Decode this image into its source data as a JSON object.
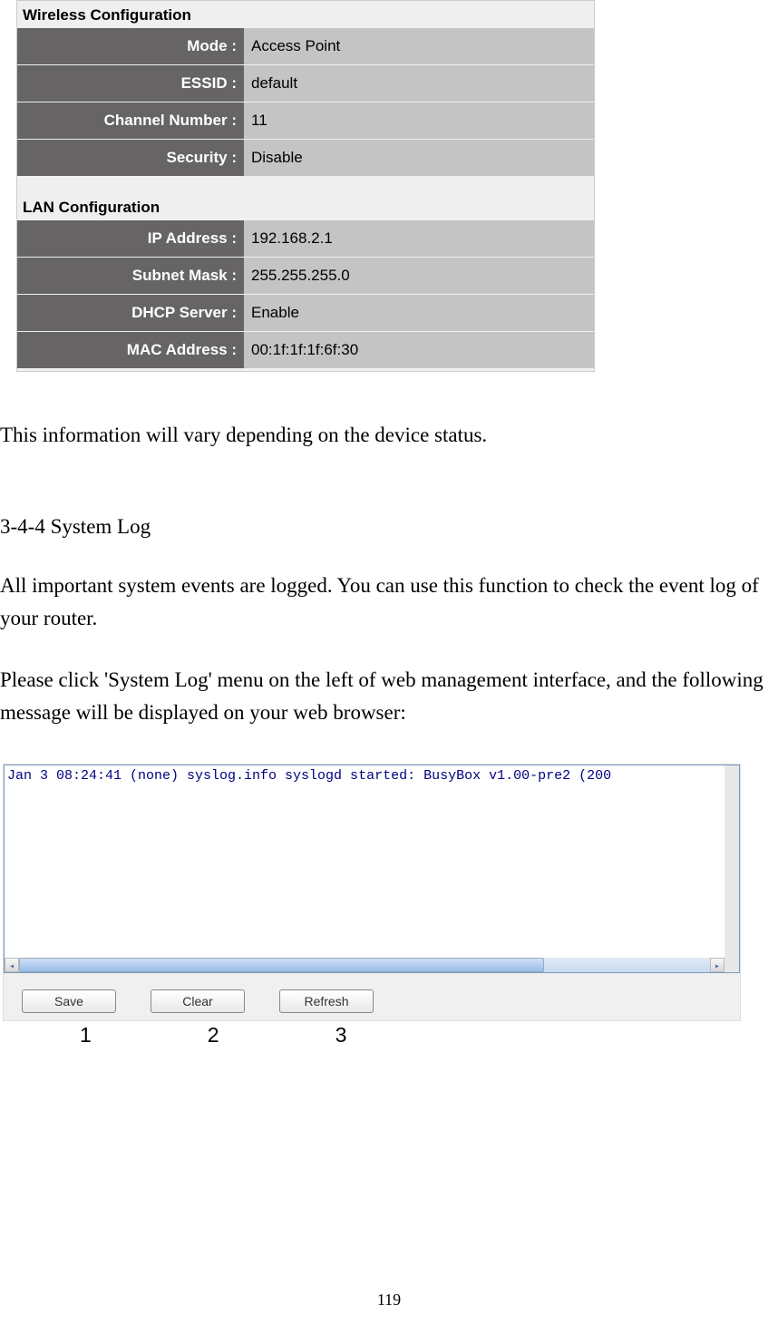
{
  "wireless_config": {
    "title": "Wireless Configuration",
    "rows": [
      {
        "label": "Mode :",
        "value": "Access Point"
      },
      {
        "label": "ESSID :",
        "value": "default"
      },
      {
        "label": "Channel Number :",
        "value": "11"
      },
      {
        "label": "Security :",
        "value": "Disable"
      }
    ]
  },
  "lan_config": {
    "title": "LAN Configuration",
    "rows": [
      {
        "label": "IP Address :",
        "value": "192.168.2.1"
      },
      {
        "label": "Subnet Mask :",
        "value": "255.255.255.0"
      },
      {
        "label": "DHCP Server :",
        "value": "Enable"
      },
      {
        "label": "MAC Address :",
        "value": "00:1f:1f:1f:6f:30"
      }
    ]
  },
  "body_text": "This information will vary depending on the device status.",
  "section_title": "3-4-4 System Log",
  "para1": "All important system events are logged. You can use this function to check the event log of your router.",
  "para2": "Please click 'System Log' menu on the left of web management interface, and the following message will be displayed on your web browser:",
  "syslog": {
    "content": "Jan  3 08:24:41 (none) syslog.info syslogd started: BusyBox v1.00-pre2 (200",
    "text_color": "#000080",
    "background": "#ffffff",
    "font_family": "Courier New",
    "font_size": 15
  },
  "buttons": {
    "save": "Save",
    "clear": "Clear",
    "refresh": "Refresh"
  },
  "number_labels": [
    "1",
    "2",
    "3"
  ],
  "page_number": "119",
  "colors": {
    "config_bg": "#efefef",
    "label_bg": "#666464",
    "label_text": "#ffffff",
    "value_bg": "#c4c4c4",
    "value_text": "#000000"
  }
}
